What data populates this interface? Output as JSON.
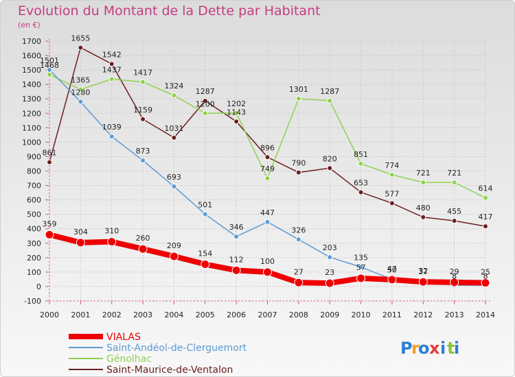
{
  "chart_data": {
    "type": "line",
    "title": "Evolution du Montant de la Dette par Habitant",
    "subtitle": "(en €)",
    "xlabel": "",
    "ylabel": "",
    "x": [
      "2000",
      "2001",
      "2002",
      "2003",
      "2004",
      "2005",
      "2006",
      "2007",
      "2008",
      "2009",
      "2010",
      "2011",
      "2012",
      "2013",
      "2014"
    ],
    "ylim": [
      -100,
      1700
    ],
    "yticks": [
      -100,
      0,
      100,
      200,
      300,
      400,
      500,
      600,
      700,
      800,
      900,
      1000,
      1100,
      1200,
      1300,
      1400,
      1500,
      1600,
      1700
    ],
    "grid": true,
    "legend_position": "bottom-left",
    "series": [
      {
        "name": "VIALAS",
        "color": "#ee0000",
        "values": [
          359,
          304,
          310,
          260,
          209,
          154,
          112,
          100,
          27,
          23,
          57,
          47,
          32,
          29,
          25
        ]
      },
      {
        "name": "Saint-Andéol-de-Clerguemort",
        "color": "#5b9bd5",
        "values": [
          1501,
          1280,
          1039,
          873,
          693,
          501,
          346,
          447,
          326,
          203,
          135,
          50,
          37,
          8,
          8
        ]
      },
      {
        "name": "Génolhac",
        "color": "#8fd14f",
        "values": [
          1468,
          1365,
          1437,
          1417,
          1324,
          1200,
          1202,
          749,
          1301,
          1287,
          851,
          774,
          721,
          721,
          614
        ]
      },
      {
        "name": "Saint-Maurice-de-Ventalon",
        "color": "#6b1e1e",
        "values": [
          861,
          1655,
          1542,
          1159,
          1031,
          1287,
          1143,
          896,
          790,
          820,
          653,
          577,
          480,
          455,
          417
        ]
      }
    ]
  },
  "logo": {
    "letters": [
      "P",
      "r",
      "o",
      "x",
      "i",
      "t",
      "i"
    ],
    "colors": [
      "#2a7fd4",
      "#f0a020",
      "#2a7fd4",
      "#e04040",
      "#2a7fd4",
      "#8cc43c",
      "#2a7fd4"
    ]
  }
}
